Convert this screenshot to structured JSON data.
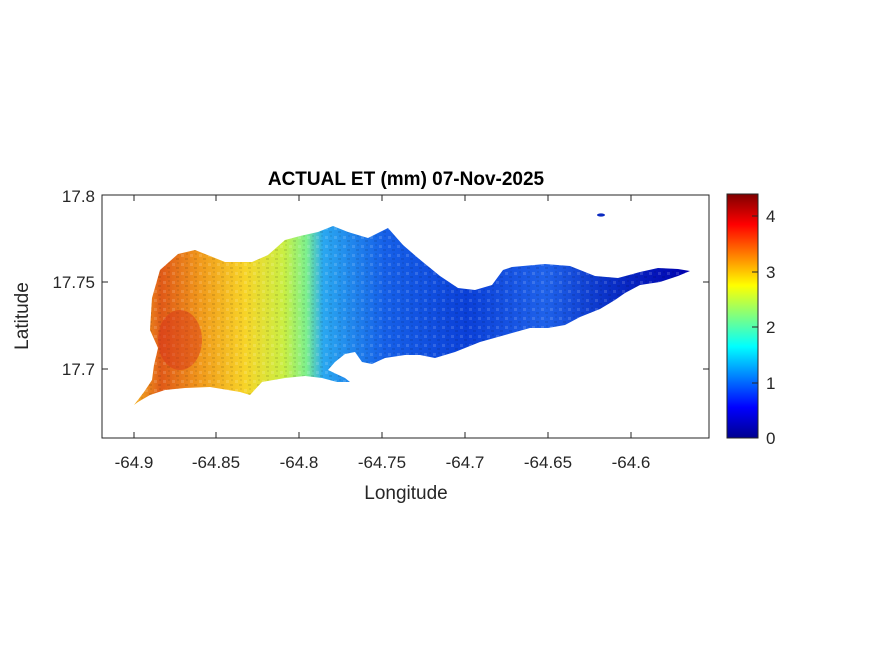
{
  "figure": {
    "title": "ACTUAL ET (mm) 07-Nov-2025",
    "xlabel": "Longitude",
    "ylabel": "Latitude"
  },
  "map_data": {
    "type": "heatmap",
    "variable": "ACTUAL ET (mm)",
    "date": "07-Nov-2025",
    "colormap": "jet",
    "clim": [
      0,
      4.4
    ],
    "colorbar_ticks": [
      0,
      1,
      2,
      3,
      4
    ],
    "colorbar_tick_labels": [
      "0",
      "1",
      "2",
      "3",
      "4"
    ],
    "xlim": [
      -64.92,
      -64.553
    ],
    "ylim": [
      17.655,
      17.8
    ],
    "xticks": [
      -64.9,
      -64.85,
      -64.8,
      -64.75,
      -64.7,
      -64.65,
      -64.6
    ],
    "xtick_labels": [
      "-64.9",
      "-64.85",
      "-64.8",
      "-64.75",
      "-64.7",
      "-64.65",
      "-64.6"
    ],
    "yticks": [
      17.7,
      17.75,
      17.8
    ],
    "ytick_labels": [
      "17.7",
      "17.75",
      "17.8"
    ],
    "trend": "ET values decrease from about 3–4 mm in the west to about 0–1 mm in the east",
    "regions": [
      {
        "name": "west",
        "lon_range": [
          -64.9,
          -64.84
        ],
        "et_approx": 3.4
      },
      {
        "name": "west-central",
        "lon_range": [
          -64.84,
          -64.79
        ],
        "et_approx": 2.5
      },
      {
        "name": "central",
        "lon_range": [
          -64.79,
          -64.72
        ],
        "et_approx": 1.1
      },
      {
        "name": "east",
        "lon_range": [
          -64.72,
          -64.57
        ],
        "et_approx": 0.6
      }
    ]
  }
}
